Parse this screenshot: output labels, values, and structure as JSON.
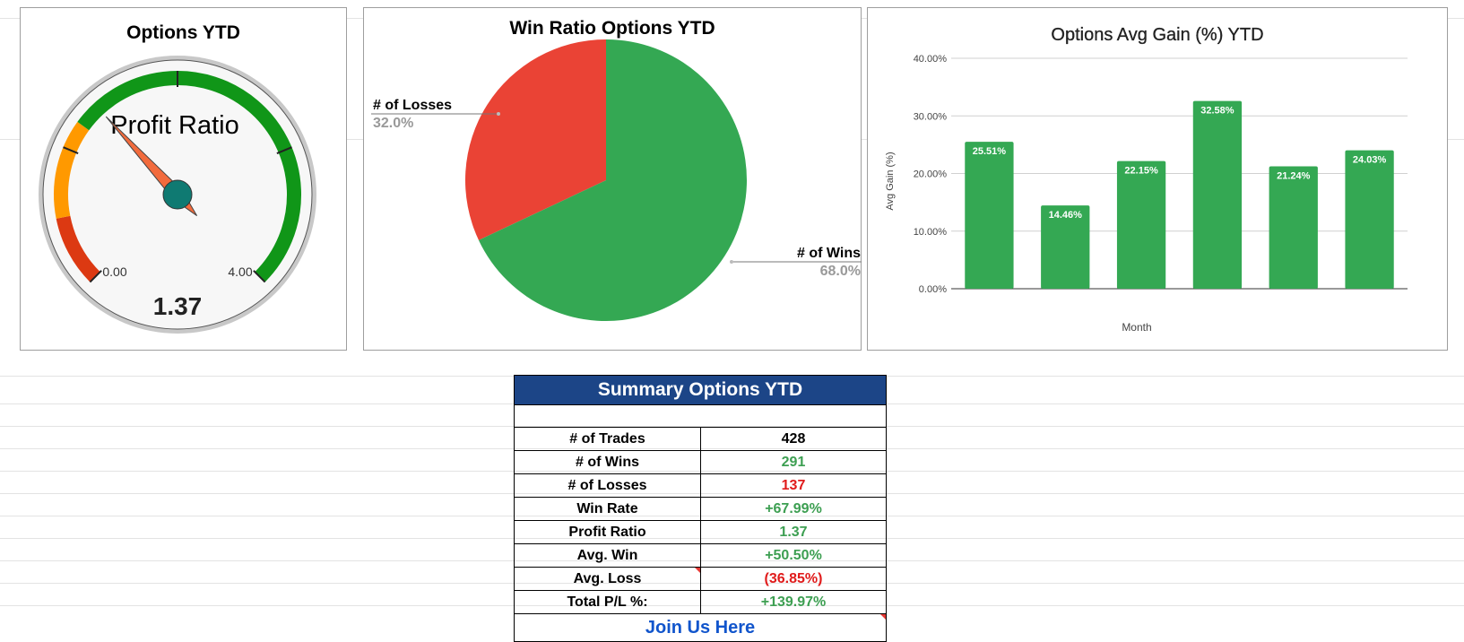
{
  "gauge": {
    "title": "Options YTD",
    "label": "Profit Ratio",
    "min_label": "0.00",
    "max_label": "4.00",
    "min": 0,
    "max": 4,
    "value": 1.37,
    "value_label": "1.37",
    "colors": {
      "red": "#dc3912",
      "orange": "#ff9900",
      "green": "#109618",
      "needle": "#f26b3d",
      "hub": "#0f7a72"
    }
  },
  "chart_data": [
    {
      "type": "pie",
      "title": "Win Ratio Options YTD",
      "slices": [
        {
          "label": "# of Losses",
          "percent_label": "32.0%",
          "value": 32.0,
          "color": "#ea4335"
        },
        {
          "label": "# of Wins",
          "percent_label": "68.0%",
          "value": 68.0,
          "color": "#34a853"
        }
      ]
    },
    {
      "type": "bar",
      "title": "Options Avg Gain (%) YTD",
      "xlabel": "Month",
      "ylabel": "Avg Gain (%)",
      "ylim": [
        0,
        40
      ],
      "yticks": [
        "0.00%",
        "10.00%",
        "20.00%",
        "30.00%",
        "40.00%"
      ],
      "ytick_values": [
        0,
        10,
        20,
        30,
        40
      ],
      "values": [
        25.51,
        14.46,
        22.15,
        32.58,
        21.24,
        24.03
      ],
      "value_labels": [
        "25.51%",
        "14.46%",
        "22.15%",
        "32.58%",
        "21.24%",
        "24.03%"
      ],
      "color": "#34a853"
    }
  ],
  "summary": {
    "title": "Summary Options YTD",
    "rows": [
      {
        "label": "# of Trades",
        "value": "428",
        "tone": "black"
      },
      {
        "label": "# of Wins",
        "value": "291",
        "tone": "green"
      },
      {
        "label": "# of Losses",
        "value": "137",
        "tone": "red"
      },
      {
        "label": "Win Rate",
        "value": "+67.99%",
        "tone": "green"
      },
      {
        "label": "Profit Ratio",
        "value": "1.37",
        "tone": "green"
      },
      {
        "label": "Avg. Win",
        "value": "+50.50%",
        "tone": "green"
      },
      {
        "label": "Avg. Loss",
        "value": "(36.85%)",
        "tone": "red"
      },
      {
        "label": "Total P/L %:",
        "value": "+139.97%",
        "tone": "green"
      }
    ],
    "join_label": "Join Us Here"
  }
}
